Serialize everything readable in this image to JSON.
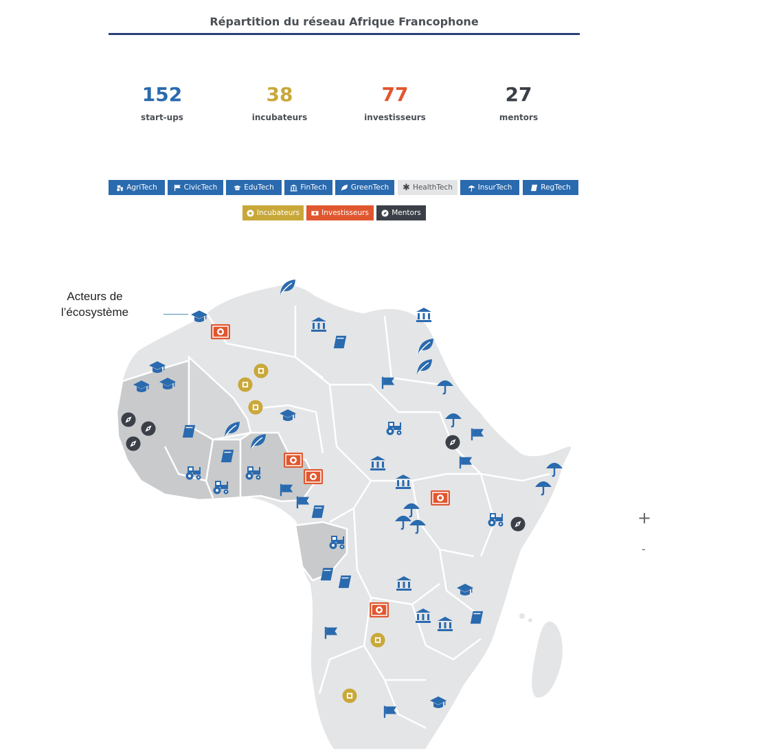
{
  "header": {
    "title": "Répartition du réseau Afrique Francophone"
  },
  "stats": [
    {
      "value": "152",
      "label": "start-ups",
      "color": "#2a6aae"
    },
    {
      "value": "38",
      "label": "incubateurs",
      "color": "#c9a83a"
    },
    {
      "value": "77",
      "label": "investisseurs",
      "color": "#e0572f"
    },
    {
      "value": "27",
      "label": "mentors",
      "color": "#3b4048"
    }
  ],
  "filters": {
    "sectors": [
      {
        "label": "AgriTech",
        "icon": "tractor-icon",
        "state": "active"
      },
      {
        "label": "CivicTech",
        "icon": "flag-icon",
        "state": "active"
      },
      {
        "label": "EduTech",
        "icon": "graduation-cap-icon",
        "state": "active"
      },
      {
        "label": "FinTech",
        "icon": "bank-icon",
        "state": "active"
      },
      {
        "label": "GreenTech",
        "icon": "leaf-icon",
        "state": "active"
      },
      {
        "label": "HealthTech",
        "icon": "asterisk-icon",
        "state": "inactive"
      },
      {
        "label": "InsurTech",
        "icon": "umbrella-icon",
        "state": "active"
      },
      {
        "label": "RegTech",
        "icon": "book-icon",
        "state": "active"
      }
    ],
    "actors": [
      {
        "label": "Incubateurs",
        "icon": "incubator-icon",
        "color": "#c9a83a"
      },
      {
        "label": "Investisseurs",
        "icon": "money-icon",
        "color": "#e0572f"
      },
      {
        "label": "Mentors",
        "icon": "compass-icon",
        "color": "#3b4048"
      }
    ]
  },
  "annotation": {
    "line1": "Acteurs de",
    "line2": "l’écosystème"
  },
  "zoom": {
    "in_label": "+",
    "out_label": "-"
  },
  "colors": {
    "sector": "#2a6aae",
    "inactive": "#e4e5e7",
    "incubator": "#c9a83a",
    "investor": "#e0572f",
    "mentor": "#3b4048",
    "map_light": "#e4e5e7",
    "map_dark": "#c9cacc"
  }
}
